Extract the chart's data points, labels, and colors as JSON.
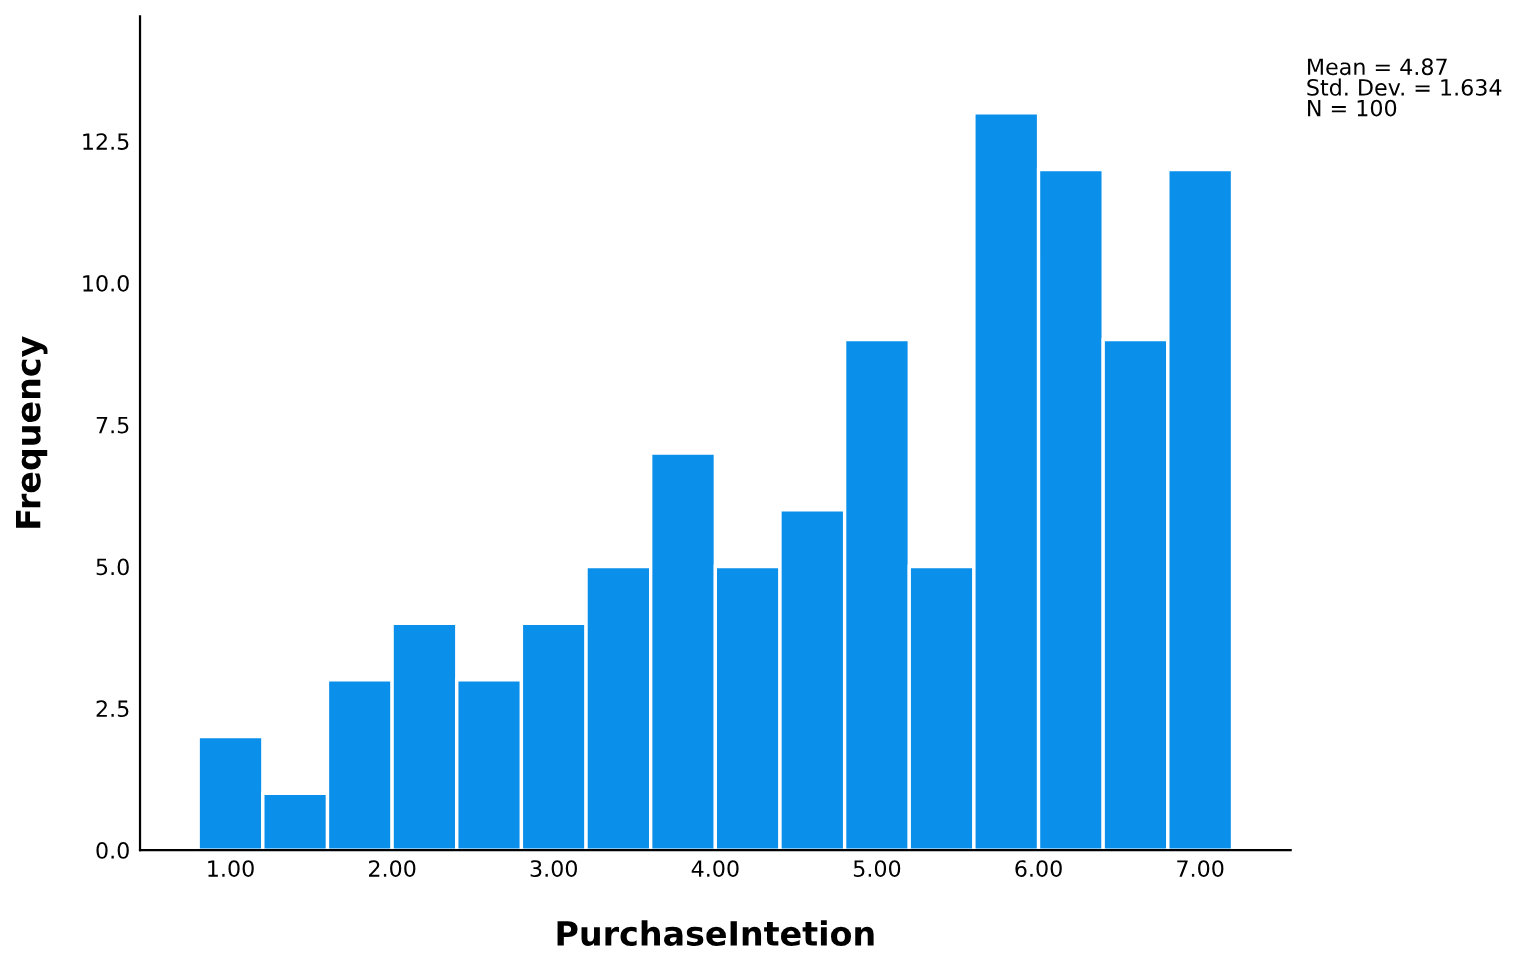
{
  "chart_data": {
    "type": "histogram",
    "xlabel": "PurchaseIntetion",
    "ylabel": "Frequency",
    "bins": [
      0.8,
      1.2,
      1.6,
      2.0,
      2.4,
      2.8,
      3.2,
      3.6,
      4.0,
      4.4,
      4.8,
      5.2,
      5.6,
      6.0,
      6.4,
      6.8,
      7.2
    ],
    "values": [
      2,
      1,
      3,
      4,
      3,
      4,
      5,
      7,
      5,
      6,
      9,
      5,
      13,
      12,
      9,
      12
    ],
    "color": "#0a8fea",
    "xlim": [
      0.44,
      7.56
    ],
    "xticks": [
      {
        "value": 1,
        "label": "1.00"
      },
      {
        "value": 2,
        "label": "2.00"
      },
      {
        "value": 3,
        "label": "3.00"
      },
      {
        "value": 4,
        "label": "4.00"
      },
      {
        "value": 5,
        "label": "5.00"
      },
      {
        "value": 6,
        "label": "6.00"
      },
      {
        "value": 7,
        "label": "7.00"
      }
    ],
    "ylim": [
      0,
      14.7
    ],
    "yticks": [
      {
        "value": 0,
        "label": "0.0"
      },
      2.5,
      {
        "value": 5,
        "label": "5.0"
      },
      7.5,
      {
        "value": 10,
        "label": "10.0"
      },
      12.5
    ],
    "grid": false,
    "legend": false,
    "annotations": [
      "Mean = 4.87\nStd. Dev. = 1.634\nN = 100"
    ]
  }
}
